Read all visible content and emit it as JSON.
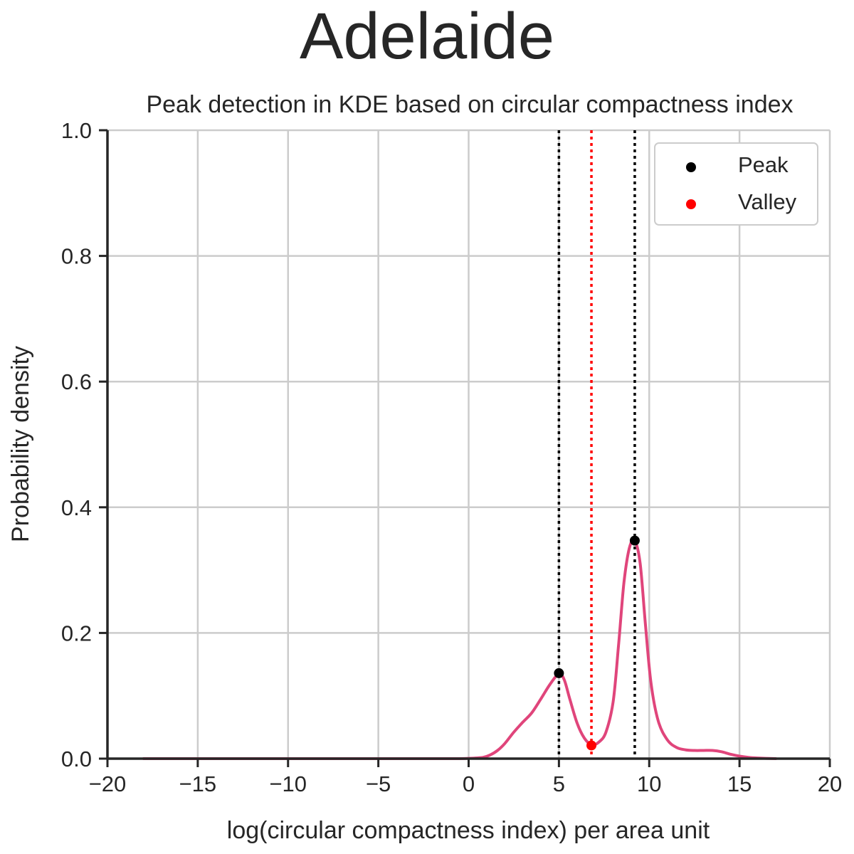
{
  "chart_data": {
    "type": "line",
    "suptitle": "Adelaide",
    "title": "Peak detection in KDE based on circular compactness index",
    "xlabel": "log(circular compactness index) per area unit",
    "ylabel": "Probability density",
    "xlim": [
      -20,
      20
    ],
    "ylim": [
      0,
      1.0
    ],
    "xticks": [
      -20,
      -15,
      -10,
      -5,
      0,
      5,
      10,
      15,
      20
    ],
    "xtick_labels": [
      "−20",
      "−15",
      "−10",
      "−5",
      "0",
      "5",
      "10",
      "15",
      "20"
    ],
    "yticks": [
      0.0,
      0.2,
      0.4,
      0.6,
      0.8,
      1.0
    ],
    "ytick_labels": [
      "0.0",
      "0.2",
      "0.4",
      "0.6",
      "0.8",
      "1.0"
    ],
    "grid": true,
    "legend_position": "top-right",
    "colors": {
      "kde": "#e0457b",
      "peak": "#000000",
      "valley": "#ff0000",
      "grid": "#cccccc",
      "axis": "#262626"
    },
    "kde_curve": {
      "x": [
        -18.0,
        -10.0,
        -5.0,
        -1.0,
        0.0,
        0.8,
        1.2,
        1.6,
        2.0,
        2.5,
        3.0,
        3.5,
        4.0,
        4.5,
        5.0,
        5.3,
        5.6,
        6.0,
        6.4,
        6.8,
        7.2,
        7.6,
        8.0,
        8.3,
        8.6,
        8.9,
        9.2,
        9.5,
        9.8,
        10.1,
        10.5,
        11.0,
        11.5,
        12.0,
        12.5,
        13.0,
        13.5,
        14.0,
        14.5,
        15.0,
        15.5,
        16.0,
        17.0
      ],
      "y": [
        0.0,
        0.0,
        0.0,
        0.0,
        0.0005,
        0.002,
        0.006,
        0.013,
        0.024,
        0.042,
        0.058,
        0.073,
        0.095,
        0.118,
        0.135,
        0.125,
        0.095,
        0.057,
        0.033,
        0.022,
        0.026,
        0.042,
        0.09,
        0.18,
        0.28,
        0.335,
        0.347,
        0.31,
        0.21,
        0.12,
        0.06,
        0.03,
        0.018,
        0.014,
        0.013,
        0.013,
        0.013,
        0.011,
        0.007,
        0.004,
        0.002,
        0.001,
        0.0
      ]
    },
    "peaks": {
      "name": "Peak",
      "x": [
        5.0,
        9.2
      ],
      "y": [
        0.136,
        0.347
      ]
    },
    "valleys": {
      "name": "Valley",
      "x": [
        6.8
      ],
      "y": [
        0.021
      ]
    },
    "vlines": [
      {
        "x": 5.0,
        "color": "black"
      },
      {
        "x": 6.8,
        "color": "red"
      },
      {
        "x": 9.2,
        "color": "black"
      }
    ]
  }
}
